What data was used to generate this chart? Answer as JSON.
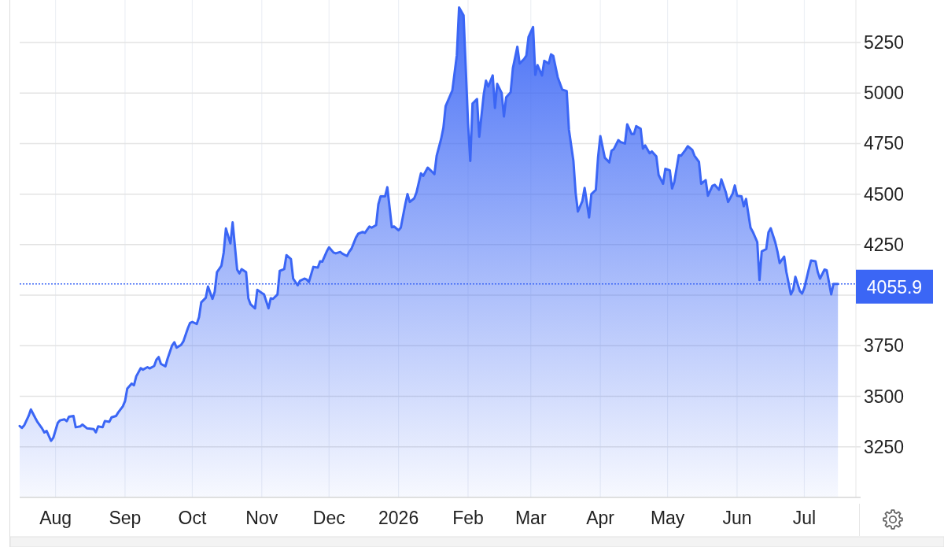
{
  "chart_data": {
    "type": "area",
    "color": "#3b66f5",
    "x": [
      "2025-07-16",
      "2025-07-17",
      "2025-07-18",
      "2025-07-20",
      "2025-07-21",
      "2025-07-23",
      "2025-07-24",
      "2025-07-26",
      "2025-07-27",
      "2025-07-28",
      "2025-07-30",
      "2025-07-31",
      "2025-08-02",
      "2025-08-03",
      "2025-08-05",
      "2025-08-06",
      "2025-08-07",
      "2025-08-09",
      "2025-08-10",
      "2025-08-12",
      "2025-08-13",
      "2025-08-15",
      "2025-08-16",
      "2025-08-18",
      "2025-08-19",
      "2025-08-20",
      "2025-08-22",
      "2025-08-23",
      "2025-08-25",
      "2025-08-26",
      "2025-08-28",
      "2025-08-29",
      "2025-08-31",
      "2025-09-01",
      "2025-09-02",
      "2025-09-04",
      "2025-09-05",
      "2025-09-06",
      "2025-09-08",
      "2025-09-09",
      "2025-09-11",
      "2025-09-12",
      "2025-09-14",
      "2025-09-15",
      "2025-09-16",
      "2025-09-17",
      "2025-09-19",
      "2025-09-20",
      "2025-09-22",
      "2025-09-23",
      "2025-09-24",
      "2025-09-26",
      "2025-09-27",
      "2025-09-29",
      "2025-09-30",
      "2025-10-01",
      "2025-10-03",
      "2025-10-04",
      "2025-10-05",
      "2025-10-07",
      "2025-10-08",
      "2025-10-10",
      "2025-10-11",
      "2025-10-12",
      "2025-10-14",
      "2025-10-15",
      "2025-10-16",
      "2025-10-18",
      "2025-10-19",
      "2025-10-21",
      "2025-10-22",
      "2025-10-23",
      "2025-10-25",
      "2025-10-26",
      "2025-10-27",
      "2025-10-29",
      "2025-10-30",
      "2025-11-01",
      "2025-11-02",
      "2025-11-04",
      "2025-11-05",
      "2025-11-06",
      "2025-11-08",
      "2025-11-09",
      "2025-11-11",
      "2025-11-12",
      "2025-11-14",
      "2025-11-15",
      "2025-11-17",
      "2025-11-18",
      "2025-11-20",
      "2025-11-21",
      "2025-11-22",
      "2025-11-24",
      "2025-11-26",
      "2025-11-27",
      "2025-11-28",
      "2025-11-30",
      "2025-12-01",
      "2025-12-03",
      "2025-12-04",
      "2025-12-06",
      "2025-12-07",
      "2025-12-09",
      "2025-12-10",
      "2025-12-11",
      "2025-12-13",
      "2025-12-14",
      "2025-12-16",
      "2025-12-17",
      "2025-12-19",
      "2025-12-20",
      "2025-12-22",
      "2025-12-23",
      "2025-12-24",
      "2025-12-26",
      "2025-12-27",
      "2025-12-29",
      "2025-12-30",
      "2026-01-01",
      "2026-01-02",
      "2026-01-04",
      "2026-01-05",
      "2026-01-06",
      "2026-01-08",
      "2026-01-09",
      "2026-01-11",
      "2026-01-12",
      "2026-01-14",
      "2026-01-15",
      "2026-01-17",
      "2026-01-18",
      "2026-01-20",
      "2026-01-21",
      "2026-01-22",
      "2026-01-24",
      "2026-01-25",
      "2026-01-27",
      "2026-01-28",
      "2026-01-30",
      "2026-02-01",
      "2026-02-02",
      "2026-02-03",
      "2026-02-05",
      "2026-02-06",
      "2026-02-08",
      "2026-02-09",
      "2026-02-10",
      "2026-02-12",
      "2026-02-13",
      "2026-02-14",
      "2026-02-16",
      "2026-02-17",
      "2026-02-18",
      "2026-02-20",
      "2026-02-21",
      "2026-02-23",
      "2026-02-24",
      "2026-02-26",
      "2026-02-27",
      "2026-02-28",
      "2026-03-02",
      "2026-03-03",
      "2026-03-04",
      "2026-03-06",
      "2026-03-07",
      "2026-03-09",
      "2026-03-10",
      "2026-03-11",
      "2026-03-13",
      "2026-03-15",
      "2026-03-17",
      "2026-03-18",
      "2026-03-20",
      "2026-03-21",
      "2026-03-22",
      "2026-03-24",
      "2026-03-25",
      "2026-03-27",
      "2026-03-28",
      "2026-03-30",
      "2026-03-31",
      "2026-04-01",
      "2026-04-03",
      "2026-04-05",
      "2026-04-06",
      "2026-04-07",
      "2026-04-09",
      "2026-04-10",
      "2026-04-12",
      "2026-04-13",
      "2026-04-15",
      "2026-04-16",
      "2026-04-17",
      "2026-04-19",
      "2026-04-20",
      "2026-04-21",
      "2026-04-23",
      "2026-04-24",
      "2026-04-26",
      "2026-04-27",
      "2026-04-29",
      "2026-04-30",
      "2026-05-02",
      "2026-05-03",
      "2026-05-04",
      "2026-05-06",
      "2026-05-07",
      "2026-05-09",
      "2026-05-10",
      "2026-05-12",
      "2026-05-13",
      "2026-05-15",
      "2026-05-16",
      "2026-05-18",
      "2026-05-19",
      "2026-05-21",
      "2026-05-22",
      "2026-05-24",
      "2026-05-25",
      "2026-05-27",
      "2026-05-28",
      "2026-05-30",
      "2026-05-31",
      "2026-06-01",
      "2026-06-03",
      "2026-06-04",
      "2026-06-05",
      "2026-06-07",
      "2026-06-08",
      "2026-06-10",
      "2026-06-11",
      "2026-06-12",
      "2026-06-14",
      "2026-06-15",
      "2026-06-16",
      "2026-06-18",
      "2026-06-19",
      "2026-06-20",
      "2026-06-22",
      "2026-06-23",
      "2026-06-25",
      "2026-06-26",
      "2026-06-27",
      "2026-06-29",
      "2026-06-30",
      "2026-07-01",
      "2026-07-03",
      "2026-07-04",
      "2026-07-06",
      "2026-07-07",
      "2026-07-08",
      "2026-07-10",
      "2026-07-11",
      "2026-07-13",
      "2026-07-14",
      "2026-07-16"
    ],
    "values": [
      3353,
      3344,
      3356,
      3403,
      3435,
      3392,
      3372,
      3341,
      3321,
      3329,
      3280,
      3295,
      3369,
      3381,
      3386,
      3377,
      3399,
      3403,
      3347,
      3351,
      3360,
      3342,
      3341,
      3338,
      3322,
      3351,
      3347,
      3378,
      3374,
      3396,
      3403,
      3421,
      3450,
      3476,
      3538,
      3563,
      3555,
      3599,
      3639,
      3632,
      3644,
      3638,
      3650,
      3681,
      3694,
      3661,
      3648,
      3687,
      3752,
      3767,
      3741,
      3754,
      3771,
      3836,
      3863,
      3868,
      3858,
      3891,
      3965,
      3987,
      4043,
      3982,
      4017,
      4114,
      4146,
      4211,
      4330,
      4256,
      4360,
      4127,
      4108,
      4129,
      4114,
      3985,
      3955,
      3935,
      4027,
      4011,
      4004,
      3935,
      3985,
      3982,
      4004,
      4120,
      4129,
      4198,
      4179,
      4082,
      4049,
      4071,
      4082,
      4078,
      4065,
      4140,
      4137,
      4168,
      4166,
      4217,
      4237,
      4211,
      4207,
      4214,
      4205,
      4194,
      4215,
      4230,
      4285,
      4304,
      4313,
      4308,
      4340,
      4334,
      4347,
      4450,
      4489,
      4489,
      4534,
      4336,
      4340,
      4321,
      4334,
      4450,
      4500,
      4461,
      4479,
      4508,
      4603,
      4590,
      4631,
      4621,
      4599,
      4690,
      4773,
      4828,
      4935,
      4987,
      5013,
      5187,
      5423,
      5384,
      4851,
      4664,
      4948,
      4970,
      4784,
      4993,
      5061,
      5032,
      5087,
      4926,
      5045,
      5000,
      4884,
      4978,
      5004,
      5123,
      5229,
      5146,
      5168,
      5185,
      5278,
      5326,
      5090,
      5138,
      5087,
      5159,
      5146,
      5191,
      5184,
      5078,
      5017,
      5010,
      4819,
      4664,
      4505,
      4414,
      4466,
      4531,
      4385,
      4500,
      4521,
      4683,
      4787,
      4680,
      4657,
      4715,
      4722,
      4767,
      4758,
      4750,
      4845,
      4797,
      4797,
      4836,
      4823,
      4725,
      4741,
      4702,
      4711,
      4686,
      4595,
      4551,
      4625,
      4618,
      4528,
      4560,
      4692,
      4690,
      4719,
      4737,
      4719,
      4690,
      4660,
      4551,
      4569,
      4492,
      4541,
      4546,
      4521,
      4573,
      4508,
      4461,
      4502,
      4543,
      4492,
      4489,
      4440,
      4476,
      4334,
      4314,
      4263,
      4075,
      4217,
      4228,
      4311,
      4331,
      4263,
      4217,
      4159,
      4191,
      4114,
      4004,
      4026,
      4091,
      4021,
      4008,
      4036,
      4129,
      4172,
      4168,
      4114,
      4082,
      4127,
      4123,
      4004,
      4056,
      4056
    ],
    "xlim": [
      "2025-07-16",
      "2026-07-24"
    ],
    "ylim": [
      3000,
      5460
    ],
    "xticks": [
      {
        "value": "2025-08-01",
        "label": "Aug"
      },
      {
        "value": "2025-09-01",
        "label": "Sep"
      },
      {
        "value": "2025-10-01",
        "label": "Oct"
      },
      {
        "value": "2025-11-01",
        "label": "Nov"
      },
      {
        "value": "2025-12-01",
        "label": "Dec"
      },
      {
        "value": "2026-01-01",
        "label": "2026"
      },
      {
        "value": "2026-02-01",
        "label": "Feb"
      },
      {
        "value": "2026-03-01",
        "label": "Mar"
      },
      {
        "value": "2026-04-01",
        "label": "Apr"
      },
      {
        "value": "2026-05-01",
        "label": "May"
      },
      {
        "value": "2026-06-01",
        "label": "Jun"
      },
      {
        "value": "2026-07-01",
        "label": "Jul"
      }
    ],
    "yticks": [
      3250,
      3500,
      3750,
      {
        "value": 4000,
        "label": null
      },
      4250,
      4500,
      4750,
      5000,
      5250
    ],
    "grid": true,
    "ref_lines": [
      {
        "axis": "y",
        "value": 4055.9,
        "label": "4055.9",
        "line_style": "dotted",
        "color": "#3b66f5"
      }
    ]
  }
}
